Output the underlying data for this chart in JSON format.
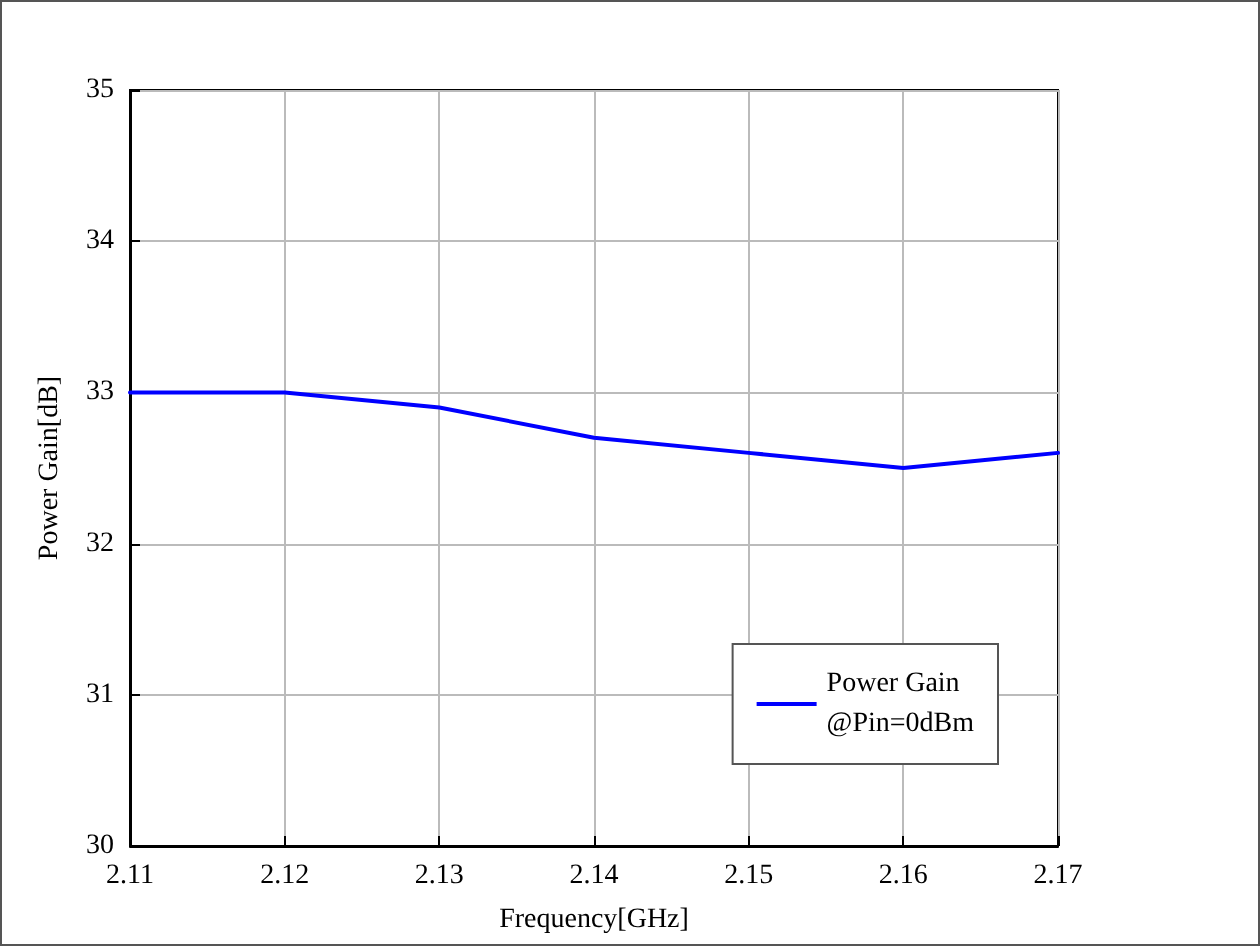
{
  "chart_data": {
    "type": "line",
    "xlabel": "Frequency[GHz]",
    "ylabel": "Power Gain[dB]",
    "x": [
      2.11,
      2.12,
      2.13,
      2.14,
      2.15,
      2.16,
      2.17
    ],
    "series": [
      {
        "name": "Power Gain\n@Pin=0dBm",
        "color": "#0000ff",
        "values": [
          33.0,
          33.0,
          32.9,
          32.7,
          32.6,
          32.5,
          32.6
        ]
      }
    ],
    "xlim": [
      2.11,
      2.17
    ],
    "xticks": [
      2.11,
      2.12,
      2.13,
      2.14,
      2.15,
      2.16,
      2.17
    ],
    "ylim": [
      30,
      35
    ],
    "yticks": [
      30,
      31,
      32,
      33,
      34,
      35
    ],
    "grid": true,
    "legend": "bottom right",
    "marker": "none",
    "line_style": "solid"
  }
}
